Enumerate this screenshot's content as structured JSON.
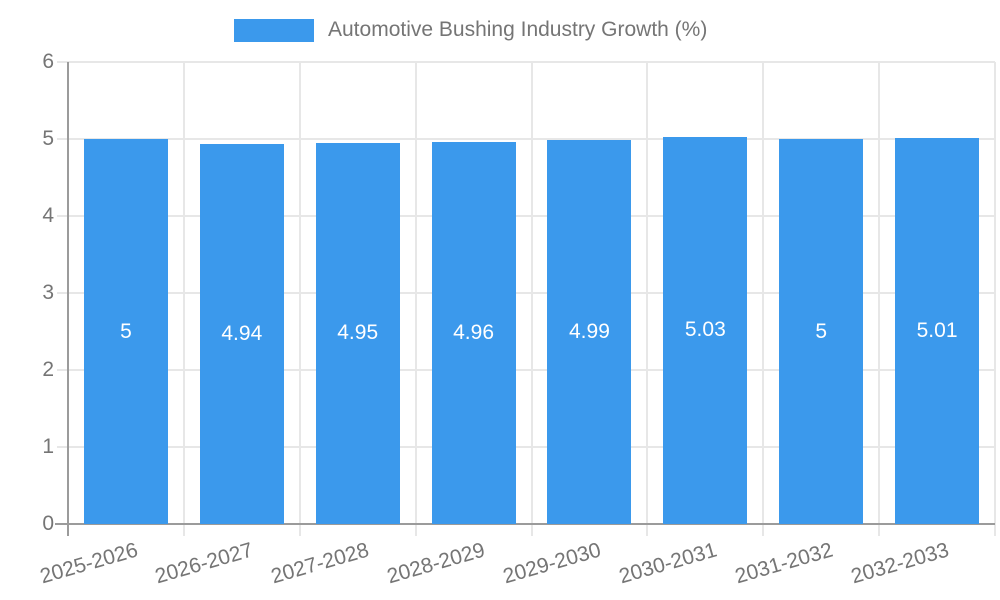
{
  "chart_data": {
    "type": "bar",
    "series_name": "Automotive Bushing Industry Growth (%)",
    "categories": [
      "2025-2026",
      "2026-2027",
      "2027-2028",
      "2028-2029",
      "2029-2030",
      "2030-2031",
      "2031-2032",
      "2032-2033"
    ],
    "values": [
      5,
      4.94,
      4.95,
      4.96,
      4.99,
      5.03,
      5,
      5.01
    ],
    "value_labels": [
      "5",
      "4.94",
      "4.95",
      "4.96",
      "4.99",
      "5.03",
      "5",
      "5.01"
    ],
    "title": "",
    "xlabel": "",
    "ylabel": "",
    "ylim": [
      0,
      6
    ],
    "y_ticks": [
      0,
      1,
      2,
      3,
      4,
      5,
      6
    ],
    "grid": true,
    "legend_position": "top-center",
    "colors": {
      "bar": "#3b99ec",
      "grid": "#e7e7e7",
      "axis": "#9b9b9b",
      "tick_text": "#757575",
      "value_text": "#ffffff",
      "background": "#ffffff"
    }
  }
}
